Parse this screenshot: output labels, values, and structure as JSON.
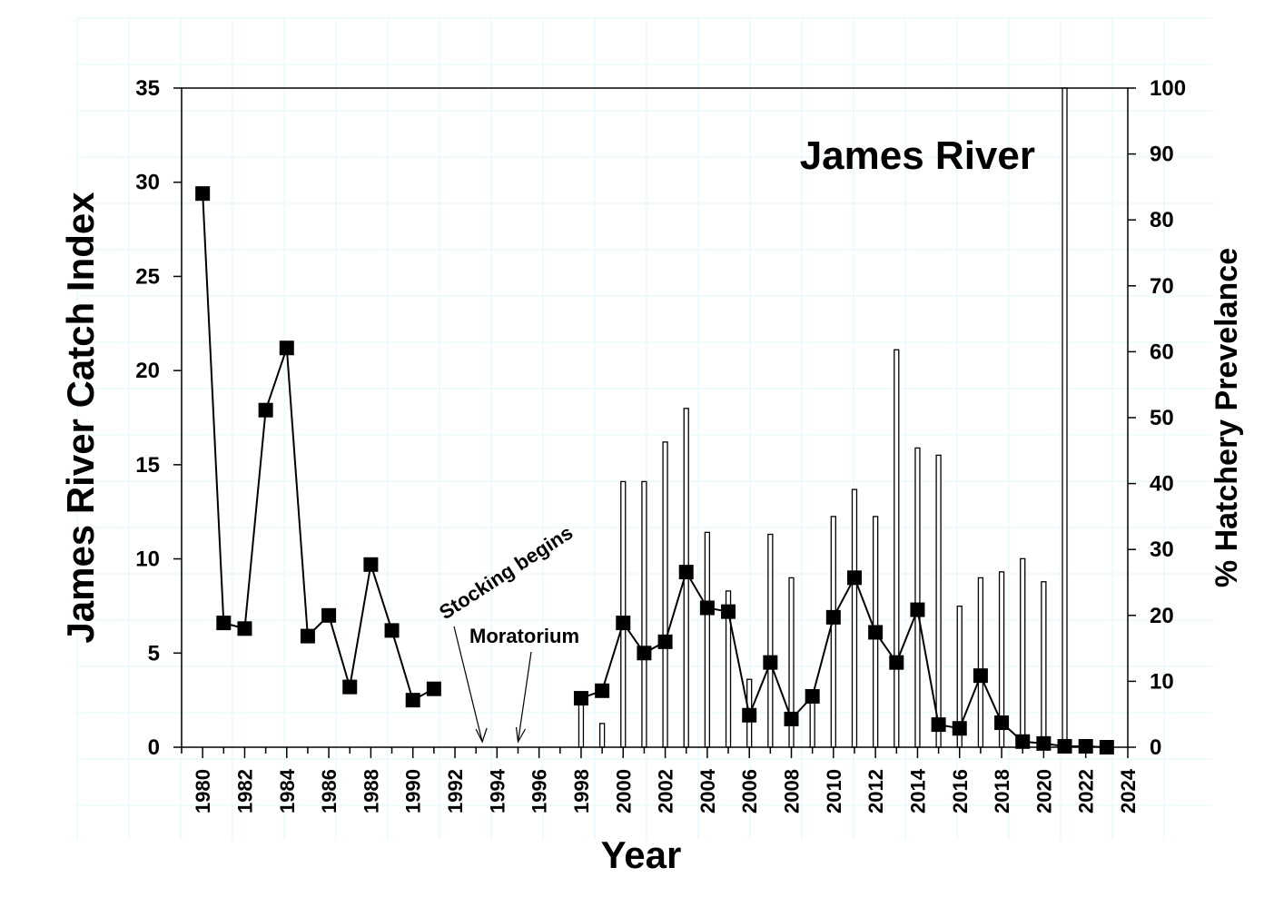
{
  "chart_data": {
    "type": "line",
    "title": "James River",
    "xlabel": "Year",
    "ylabel": "James River Catch Index",
    "y2label": "% Hatchery Prevelance",
    "xlim": [
      1979,
      2024
    ],
    "ylim": [
      0,
      35
    ],
    "y2lim": [
      0,
      100
    ],
    "x_ticks": [
      1980,
      1982,
      1984,
      1986,
      1988,
      1990,
      1992,
      1994,
      1996,
      1998,
      2000,
      2002,
      2004,
      2006,
      2008,
      2010,
      2012,
      2014,
      2016,
      2018,
      2020,
      2022,
      2024
    ],
    "y_ticks": [
      0,
      5,
      10,
      15,
      20,
      25,
      30,
      35
    ],
    "y2_ticks": [
      0,
      10,
      20,
      30,
      40,
      50,
      60,
      70,
      80,
      90,
      100
    ],
    "grid": false,
    "series": [
      {
        "type": "line",
        "axis": "left",
        "color": "#000000",
        "marker": "square",
        "segments": [
          {
            "x": [
              1980,
              1981,
              1982,
              1983,
              1984,
              1985,
              1986,
              1987,
              1988,
              1989,
              1990,
              1991
            ],
            "y": [
              29.4,
              6.6,
              6.3,
              17.9,
              21.2,
              5.9,
              7.0,
              3.2,
              9.7,
              6.2,
              2.5,
              3.1
            ]
          },
          {
            "x": [
              1998,
              1999,
              2000,
              2001,
              2002,
              2003,
              2004,
              2005,
              2006,
              2007,
              2008,
              2009,
              2010,
              2011,
              2012,
              2013,
              2014,
              2015,
              2016,
              2017,
              2018,
              2019,
              2020,
              2021,
              2022,
              2023
            ],
            "y": [
              2.6,
              3.0,
              6.6,
              5.0,
              5.6,
              9.3,
              7.4,
              7.2,
              1.7,
              4.5,
              1.5,
              2.7,
              6.9,
              9.0,
              6.1,
              4.5,
              7.3,
              1.2,
              1.0,
              3.8,
              1.3,
              0.3,
              0.2,
              0.05,
              0.05,
              0.0
            ]
          }
        ]
      },
      {
        "type": "bar",
        "axis": "right",
        "color": "#000000",
        "x": [
          1998,
          1999,
          2000,
          2001,
          2002,
          2003,
          2004,
          2005,
          2006,
          2007,
          2008,
          2009,
          2010,
          2011,
          2012,
          2013,
          2014,
          2015,
          2016,
          2017,
          2018,
          2019,
          2020,
          2021
        ],
        "y": [
          7.3,
          3.6,
          40.3,
          40.3,
          46.3,
          51.4,
          32.6,
          23.7,
          10.3,
          32.3,
          25.7,
          8.0,
          35.0,
          39.1,
          35.0,
          60.3,
          45.4,
          44.3,
          21.4,
          25.7,
          26.6,
          28.6,
          25.1,
          100
        ]
      }
    ],
    "annotations": [
      {
        "text": "Stocking begins",
        "x": 1993.3
      },
      {
        "text": "Moratorium",
        "x": 1995.0
      }
    ]
  }
}
